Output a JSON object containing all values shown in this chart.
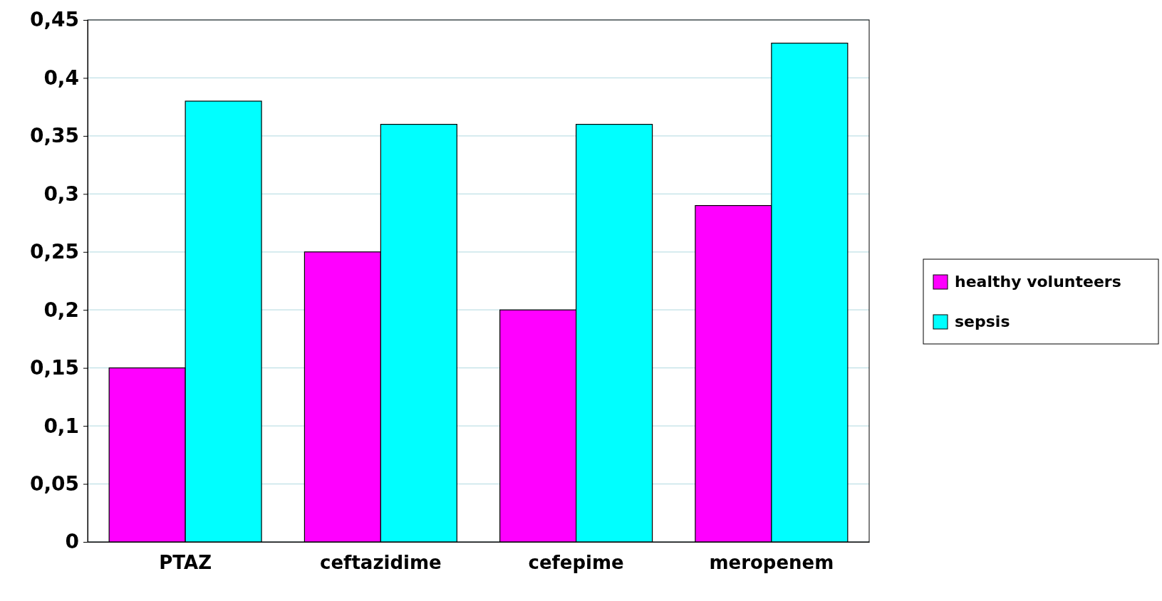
{
  "chart_data": {
    "type": "bar",
    "categories": [
      "PTAZ",
      "ceftazidime",
      "cefepime",
      "meropenem"
    ],
    "series": [
      {
        "name": "healthy volunteers",
        "color": "#ff00ff",
        "values": [
          0.15,
          0.25,
          0.2,
          0.29
        ]
      },
      {
        "name": "sepsis",
        "color": "#00ffff",
        "values": [
          0.38,
          0.36,
          0.36,
          0.43
        ]
      }
    ],
    "ylim": [
      0,
      0.45
    ],
    "yticks": [
      {
        "value": 0,
        "label": "0"
      },
      {
        "value": 0.05,
        "label": "0,05"
      },
      {
        "value": 0.1,
        "label": "0,1"
      },
      {
        "value": 0.15,
        "label": "0,15"
      },
      {
        "value": 0.2,
        "label": "0,2"
      },
      {
        "value": 0.25,
        "label": "0,25"
      },
      {
        "value": 0.3,
        "label": "0,3"
      },
      {
        "value": 0.35,
        "label": "0,35"
      },
      {
        "value": 0.4,
        "label": "0,4"
      },
      {
        "value": 0.45,
        "label": "0,45"
      }
    ],
    "grid": "y",
    "legend": "right"
  }
}
